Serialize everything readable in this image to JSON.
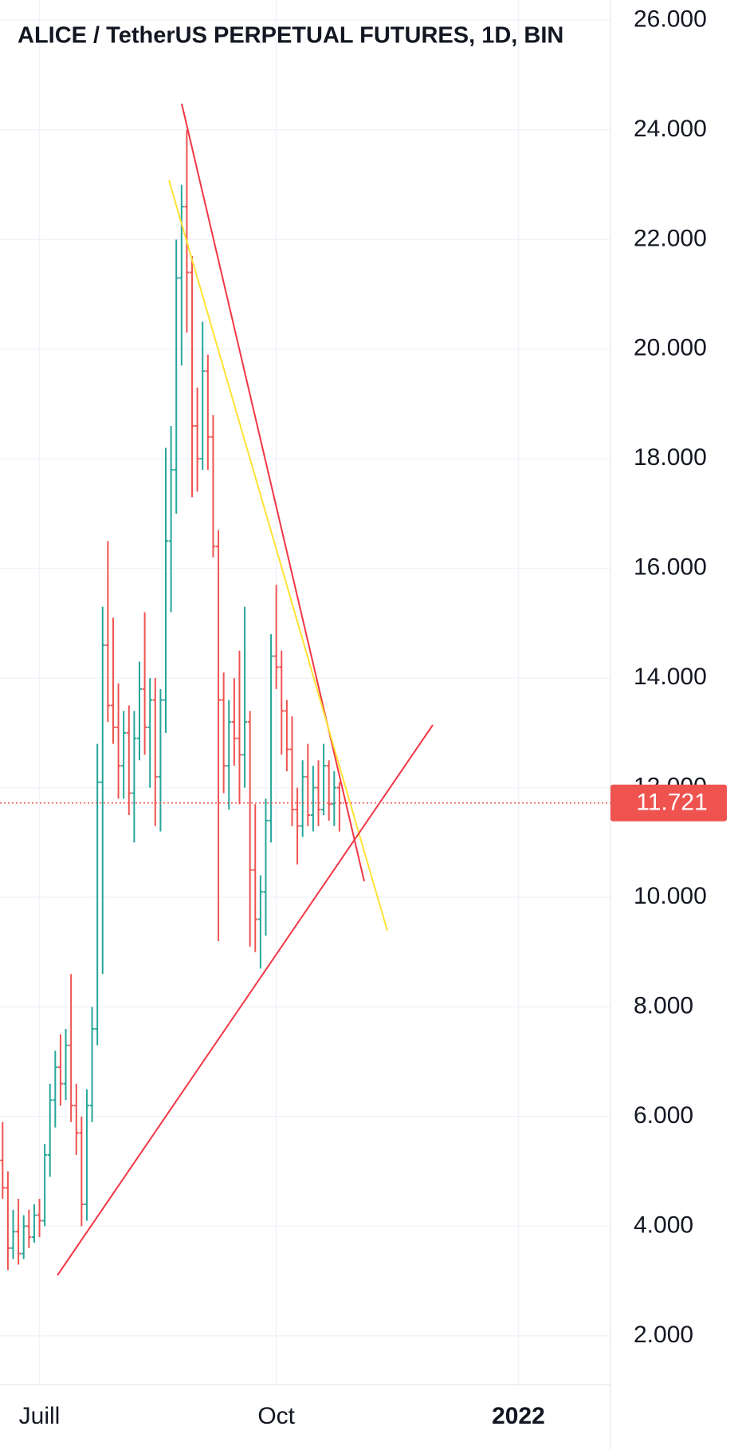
{
  "chart_data": {
    "type": "ohlc",
    "title": "ALICE / TetherUS PERPETUAL FUTURES, 1D, BIN",
    "categories": [
      null,
      null,
      null,
      null,
      null,
      null,
      null,
      "Juill",
      null,
      null,
      null,
      null,
      null,
      null,
      null,
      null,
      null,
      null,
      null,
      null,
      null,
      null,
      null,
      null,
      null,
      null,
      null,
      null,
      null,
      null,
      null,
      null,
      null,
      null,
      null,
      null,
      null,
      null,
      null,
      null,
      null,
      null,
      null,
      null,
      null,
      null,
      null,
      null,
      null,
      null,
      null,
      null,
      "Oct",
      null,
      null,
      null,
      null,
      null,
      null,
      null,
      null,
      null,
      null,
      null,
      null,
      null,
      null,
      null,
      null,
      null,
      null,
      null,
      null,
      null,
      null,
      null,
      null,
      null,
      null,
      null,
      null,
      null,
      null,
      null,
      null,
      null,
      null,
      null,
      null,
      null,
      null,
      null,
      null,
      null,
      null,
      null,
      null,
      null,
      "2022",
      null,
      null,
      null,
      null,
      null,
      null,
      null,
      null,
      null,
      null,
      null,
      null,
      null,
      null,
      null,
      null,
      null
    ],
    "open": [
      5.2,
      4.7,
      3.6,
      3.9,
      3.5,
      4.0,
      3.8,
      4.2,
      4.1,
      5.3,
      6.3,
      6.9,
      6.6,
      7.3,
      6.2,
      5.7,
      4.4,
      6.2,
      7.6,
      12.1,
      14.6,
      13.5,
      13.1,
      12.4,
      13.0,
      11.9,
      12.9,
      13.8,
      13.1,
      13.6,
      12.2,
      13.6,
      16.5,
      17.8,
      21.3,
      22.6,
      21.4,
      18.6,
      18.0,
      19.6,
      18.4,
      16.4,
      13.6,
      12.4,
      13.2,
      12.9,
      12.6,
      13.2,
      10.5,
      9.6,
      10.1,
      11.4,
      14.4,
      14.2,
      13.4,
      12.7,
      11.6,
      11.3,
      12.2,
      11.5,
      12.0,
      11.6,
      12.4,
      11.7,
      12.0,
      null,
      null,
      null,
      null,
      null,
      null,
      null,
      null,
      null,
      null,
      null,
      null,
      null,
      null,
      null,
      null,
      null,
      null,
      null,
      null,
      null,
      null,
      null,
      null,
      null,
      null,
      null,
      null,
      null,
      null,
      null,
      null,
      null,
      null,
      null,
      null,
      null,
      null,
      null,
      null,
      null,
      null,
      null,
      null,
      null,
      null,
      null,
      null,
      null,
      null,
      null
    ],
    "high": [
      5.9,
      5.0,
      4.3,
      4.5,
      4.2,
      4.3,
      4.4,
      4.5,
      5.5,
      6.6,
      7.2,
      7.5,
      7.6,
      8.6,
      6.6,
      6.0,
      6.5,
      8.0,
      12.8,
      15.3,
      16.5,
      15.1,
      13.9,
      13.4,
      13.5,
      13.4,
      14.3,
      15.2,
      14.0,
      14.0,
      13.8,
      18.2,
      18.6,
      22.0,
      23.0,
      24.0,
      21.7,
      19.3,
      20.5,
      19.9,
      18.8,
      16.7,
      14.1,
      13.6,
      14.0,
      14.5,
      15.3,
      13.4,
      11.7,
      10.4,
      11.8,
      14.8,
      15.7,
      14.5,
      13.6,
      13.3,
      12.0,
      12.5,
      12.8,
      12.4,
      12.5,
      12.8,
      12.5,
      12.3,
      12.1,
      null,
      null,
      null,
      null,
      null,
      null,
      null,
      null,
      null,
      null,
      null,
      null,
      null,
      null,
      null,
      null,
      null,
      null,
      null,
      null,
      null,
      null,
      null,
      null,
      null,
      null,
      null,
      null,
      null,
      null,
      null,
      null,
      null,
      null,
      null,
      null,
      null,
      null,
      null,
      null,
      null,
      null,
      null,
      null,
      null,
      null,
      null,
      null,
      null,
      null,
      null
    ],
    "low": [
      4.5,
      3.2,
      3.4,
      3.3,
      3.4,
      3.6,
      3.7,
      3.8,
      4.0,
      4.9,
      5.8,
      6.2,
      6.3,
      5.9,
      5.3,
      4.0,
      4.1,
      5.9,
      7.3,
      8.6,
      13.2,
      12.8,
      11.8,
      11.8,
      11.5,
      11.0,
      12.5,
      12.6,
      12.0,
      11.3,
      11.2,
      13.0,
      15.2,
      17.0,
      19.7,
      20.3,
      17.3,
      17.4,
      17.8,
      17.8,
      16.2,
      9.2,
      11.9,
      11.6,
      12.4,
      11.7,
      12.0,
      9.1,
      9.0,
      8.7,
      9.3,
      11.0,
      13.8,
      12.6,
      12.3,
      11.3,
      10.6,
      11.1,
      11.3,
      11.2,
      11.3,
      11.5,
      11.4,
      11.3,
      11.2,
      null,
      null,
      null,
      null,
      null,
      null,
      null,
      null,
      null,
      null,
      null,
      null,
      null,
      null,
      null,
      null,
      null,
      null,
      null,
      null,
      null,
      null,
      null,
      null,
      null,
      null,
      null,
      null,
      null,
      null,
      null,
      null,
      null,
      null,
      null,
      null,
      null,
      null,
      null,
      null,
      null,
      null,
      null,
      null,
      null,
      null,
      null,
      null,
      null,
      null,
      null
    ],
    "close": [
      4.7,
      3.6,
      3.9,
      3.5,
      4.0,
      3.8,
      4.2,
      4.1,
      5.3,
      6.3,
      6.9,
      6.6,
      7.3,
      6.2,
      5.7,
      4.4,
      6.2,
      7.6,
      12.1,
      14.6,
      13.5,
      13.1,
      12.4,
      13.0,
      11.9,
      12.9,
      13.8,
      13.1,
      13.6,
      12.2,
      13.6,
      16.5,
      17.8,
      21.3,
      22.6,
      21.4,
      18.6,
      18.0,
      19.6,
      18.4,
      16.4,
      13.6,
      12.4,
      13.2,
      12.9,
      12.6,
      13.2,
      10.5,
      9.6,
      10.1,
      11.4,
      14.4,
      14.2,
      13.4,
      12.7,
      11.6,
      11.3,
      12.2,
      11.5,
      12.0,
      11.6,
      12.4,
      11.7,
      12.0,
      11.721,
      null,
      null,
      null,
      null,
      null,
      null,
      null,
      null,
      null,
      null,
      null,
      null,
      null,
      null,
      null,
      null,
      null,
      null,
      null,
      null,
      null,
      null,
      null,
      null,
      null,
      null,
      null,
      null,
      null,
      null,
      null,
      null,
      null,
      null,
      null,
      null,
      null,
      null,
      null,
      null,
      null,
      null,
      null,
      null,
      null,
      null,
      null,
      null,
      null,
      null,
      null
    ],
    "up_color": "#26a69a",
    "down_color": "#ef5350",
    "last_price": 11.721,
    "ylim": [
      1.11,
      26.37
    ],
    "yticks": [
      {
        "value": 2,
        "label": "2.000"
      },
      {
        "value": 4,
        "label": "4.000"
      },
      {
        "value": 6,
        "label": "6.000"
      },
      {
        "value": 8,
        "label": "8.000"
      },
      {
        "value": 10,
        "label": "10.000"
      },
      {
        "value": 12,
        "label": "12.000"
      },
      {
        "value": 14,
        "label": "14.000"
      },
      {
        "value": 16,
        "label": "16.000"
      },
      {
        "value": 18,
        "label": "18.000"
      },
      {
        "value": 20,
        "label": "20.000"
      },
      {
        "value": 22,
        "label": "22.000"
      },
      {
        "value": 24,
        "label": "24.000"
      },
      {
        "value": 26,
        "label": "26.000"
      }
    ],
    "grid": true
  }
}
